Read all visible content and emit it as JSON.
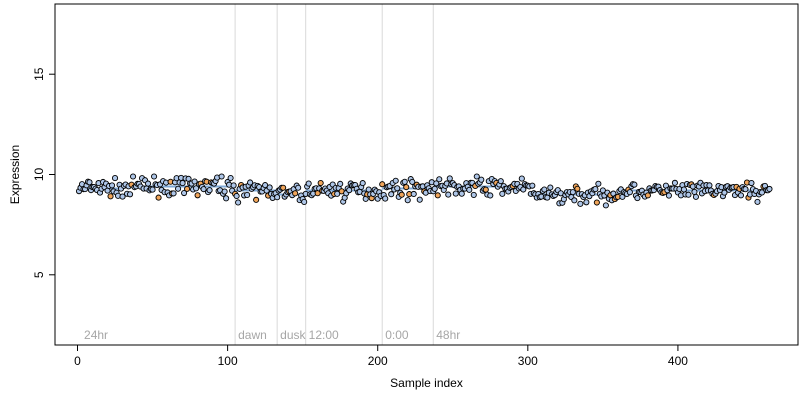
{
  "chart_data": {
    "type": "scatter",
    "title": "",
    "xlabel": "Sample index",
    "ylabel": "Expression",
    "xlim": [
      -15,
      480
    ],
    "ylim": [
      1.5,
      18.5
    ],
    "x_ticks": [
      0,
      100,
      200,
      300,
      400
    ],
    "y_ticks": [
      5,
      10,
      15
    ],
    "grid": false,
    "legend": "none",
    "vlines": [
      {
        "x": 105,
        "label": "dawn"
      },
      {
        "x": 133,
        "label": "dusk"
      },
      {
        "x": 152,
        "label": "12:00"
      },
      {
        "x": 203,
        "label": "0:00"
      },
      {
        "x": 237,
        "label": "48hr"
      }
    ],
    "text_labels": [
      {
        "x": 3,
        "label": "24hr"
      }
    ],
    "text_label_y": 2,
    "segments": [
      {
        "x0": 0,
        "x1": 30,
        "level": 9.3
      },
      {
        "x0": 30,
        "x1": 105,
        "level": 9.4
      },
      {
        "x0": 105,
        "x1": 133,
        "level": 9.2
      },
      {
        "x0": 133,
        "x1": 152,
        "level": 9.0
      },
      {
        "x0": 152,
        "x1": 203,
        "level": 9.2
      },
      {
        "x0": 203,
        "x1": 237,
        "level": 9.3
      },
      {
        "x0": 237,
        "x1": 300,
        "level": 9.4
      },
      {
        "x0": 300,
        "x1": 360,
        "level": 9.0
      },
      {
        "x0": 360,
        "x1": 460,
        "level": 9.2
      }
    ],
    "series": [
      {
        "n": 461,
        "x_start": 1,
        "x_end": 461,
        "mean": 9.25,
        "spread_range": [
          8.3,
          9.9
        ]
      }
    ],
    "colors": {
      "point_fill": "#aec6e8",
      "highlight_fill": "#f0a55a",
      "point_stroke": "#000000",
      "segment_line": "#7fa8d6",
      "vline": "#d9d9d9",
      "label_text": "#a6a6a6"
    }
  }
}
